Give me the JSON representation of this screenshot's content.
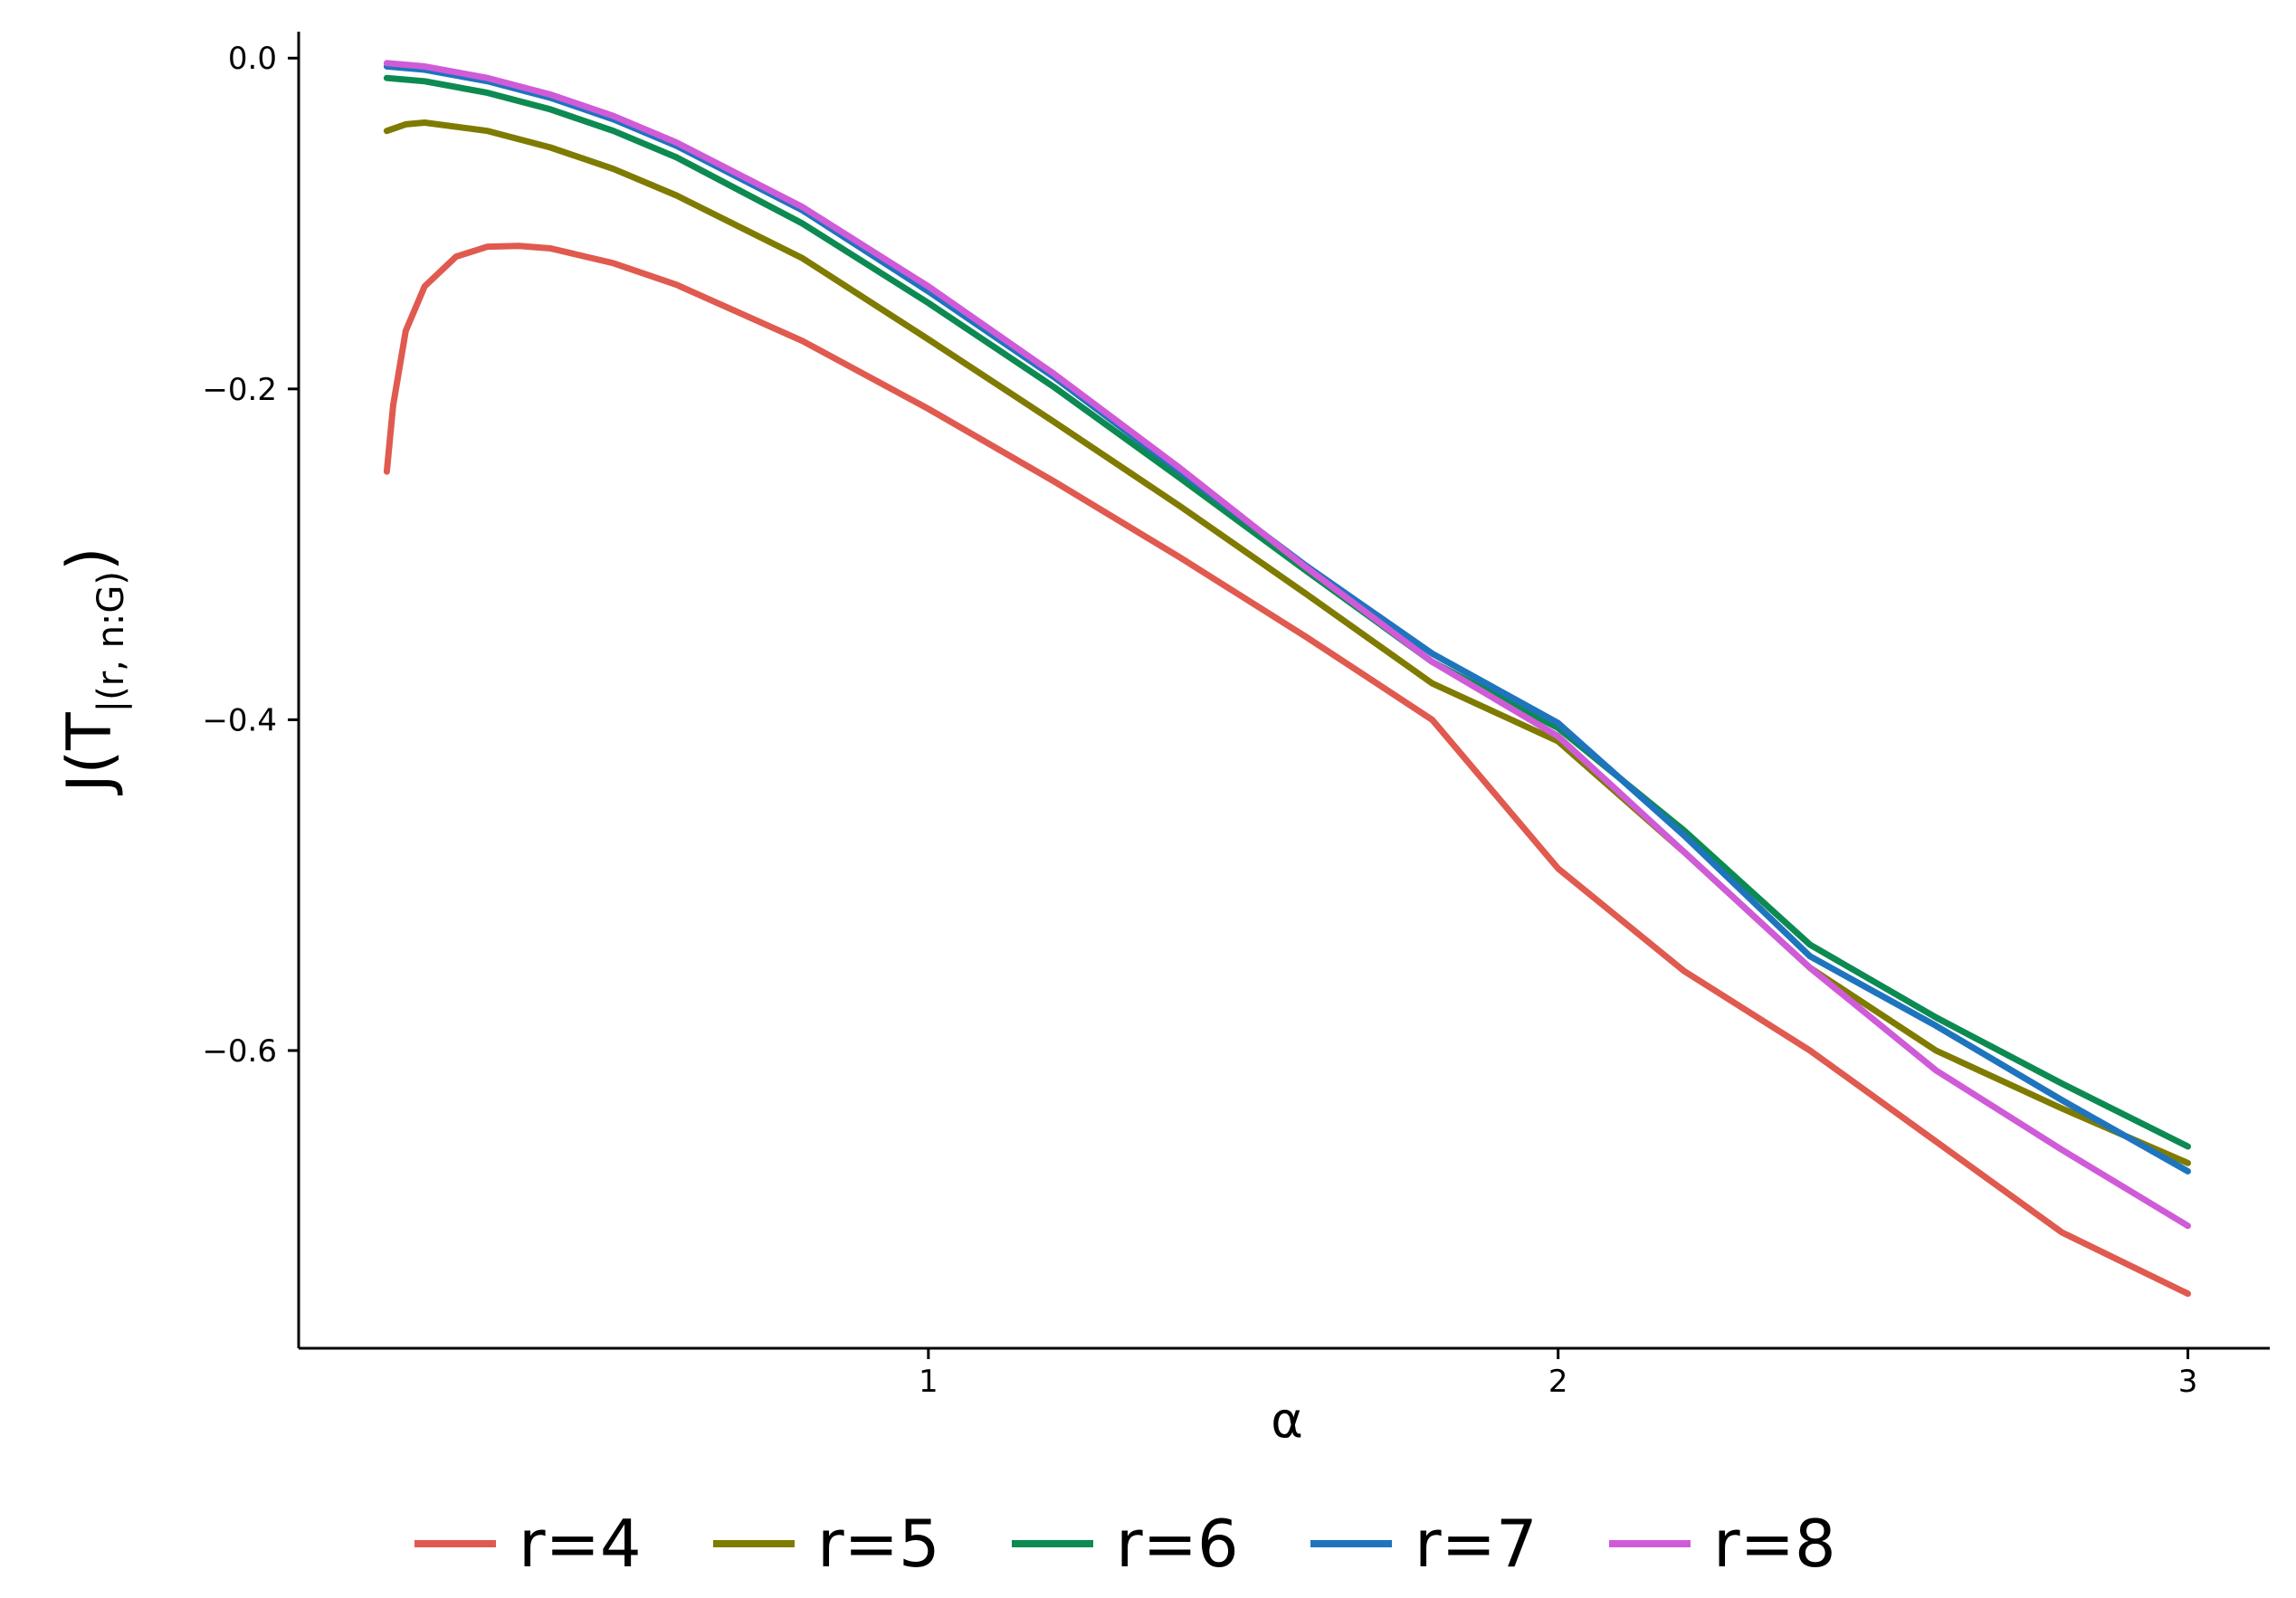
{
  "chart_data": {
    "type": "line",
    "xlabel": "α",
    "ylabel": "J(T",
    "ylabel_subscript": "|(r, n:G)",
    "ylabel_close": ")",
    "xlim": [
      0.0,
      3.13
    ],
    "ylim": [
      -0.78,
      0.016
    ],
    "x_ticks": [
      1,
      2,
      3
    ],
    "x_tick_labels": [
      "1",
      "2",
      "3"
    ],
    "y_ticks": [
      0.0,
      -0.2,
      -0.4,
      -0.6
    ],
    "y_tick_labels": [
      "0.0",
      "−0.2",
      "−0.4",
      "−0.6"
    ],
    "grid": false,
    "legend_position": "bottom",
    "series": [
      {
        "name": "r=4",
        "color": "#E05A4F",
        "points": [
          [
            0.14,
            -0.25
          ],
          [
            0.15,
            -0.21
          ],
          [
            0.17,
            -0.165
          ],
          [
            0.2,
            -0.138
          ],
          [
            0.25,
            -0.12
          ],
          [
            0.3,
            -0.114
          ],
          [
            0.35,
            -0.1135
          ],
          [
            0.4,
            -0.115
          ],
          [
            0.5,
            -0.124
          ],
          [
            0.6,
            -0.137
          ],
          [
            0.8,
            -0.171
          ],
          [
            1.0,
            -0.212
          ],
          [
            1.2,
            -0.256
          ],
          [
            1.4,
            -0.302
          ],
          [
            1.6,
            -0.35
          ],
          [
            1.8,
            -0.4
          ],
          [
            2.0,
            -0.49
          ],
          [
            2.2,
            -0.552
          ],
          [
            2.4,
            -0.6
          ],
          [
            2.6,
            -0.655
          ],
          [
            2.8,
            -0.71
          ],
          [
            3.0,
            -0.747
          ]
        ]
      },
      {
        "name": "r=5",
        "color": "#7F7B00",
        "points": [
          [
            0.14,
            -0.044
          ],
          [
            0.17,
            -0.04
          ],
          [
            0.2,
            -0.039
          ],
          [
            0.3,
            -0.044
          ],
          [
            0.4,
            -0.054
          ],
          [
            0.5,
            -0.067
          ],
          [
            0.6,
            -0.083
          ],
          [
            0.8,
            -0.121
          ],
          [
            1.0,
            -0.17
          ],
          [
            1.2,
            -0.22
          ],
          [
            1.4,
            -0.271
          ],
          [
            1.6,
            -0.324
          ],
          [
            1.8,
            -0.378
          ],
          [
            2.0,
            -0.413
          ],
          [
            2.2,
            -0.48
          ],
          [
            2.4,
            -0.55
          ],
          [
            2.6,
            -0.6
          ],
          [
            2.8,
            -0.635
          ],
          [
            3.0,
            -0.668
          ]
        ]
      },
      {
        "name": "r=6",
        "color": "#0C8A52",
        "points": [
          [
            0.14,
            -0.012
          ],
          [
            0.2,
            -0.014
          ],
          [
            0.3,
            -0.021
          ],
          [
            0.4,
            -0.031
          ],
          [
            0.5,
            -0.044
          ],
          [
            0.6,
            -0.06
          ],
          [
            0.8,
            -0.1
          ],
          [
            1.0,
            -0.148
          ],
          [
            1.2,
            -0.199
          ],
          [
            1.4,
            -0.254
          ],
          [
            1.6,
            -0.31
          ],
          [
            1.8,
            -0.365
          ],
          [
            2.0,
            -0.405
          ],
          [
            2.2,
            -0.467
          ],
          [
            2.4,
            -0.536
          ],
          [
            2.6,
            -0.58
          ],
          [
            2.8,
            -0.62
          ],
          [
            3.0,
            -0.658
          ]
        ]
      },
      {
        "name": "r=7",
        "color": "#1F74BE",
        "points": [
          [
            0.14,
            -0.005
          ],
          [
            0.2,
            -0.007
          ],
          [
            0.3,
            -0.014
          ],
          [
            0.4,
            -0.024
          ],
          [
            0.5,
            -0.037
          ],
          [
            0.6,
            -0.053
          ],
          [
            0.8,
            -0.092
          ],
          [
            1.0,
            -0.141
          ],
          [
            1.2,
            -0.193
          ],
          [
            1.4,
            -0.25
          ],
          [
            1.6,
            -0.307
          ],
          [
            1.8,
            -0.36
          ],
          [
            2.0,
            -0.402
          ],
          [
            2.2,
            -0.47
          ],
          [
            2.4,
            -0.543
          ],
          [
            2.6,
            -0.585
          ],
          [
            2.8,
            -0.63
          ],
          [
            3.0,
            -0.673
          ]
        ]
      },
      {
        "name": "r=8",
        "color": "#D05BD8",
        "points": [
          [
            0.14,
            -0.003
          ],
          [
            0.2,
            -0.005
          ],
          [
            0.3,
            -0.012
          ],
          [
            0.4,
            -0.022
          ],
          [
            0.5,
            -0.035
          ],
          [
            0.6,
            -0.051
          ],
          [
            0.8,
            -0.09
          ],
          [
            1.0,
            -0.138
          ],
          [
            1.2,
            -0.191
          ],
          [
            1.4,
            -0.248
          ],
          [
            1.6,
            -0.308
          ],
          [
            1.8,
            -0.365
          ],
          [
            2.0,
            -0.41
          ],
          [
            2.2,
            -0.48
          ],
          [
            2.4,
            -0.55
          ],
          [
            2.6,
            -0.612
          ],
          [
            2.8,
            -0.66
          ],
          [
            3.0,
            -0.706
          ]
        ]
      }
    ]
  }
}
